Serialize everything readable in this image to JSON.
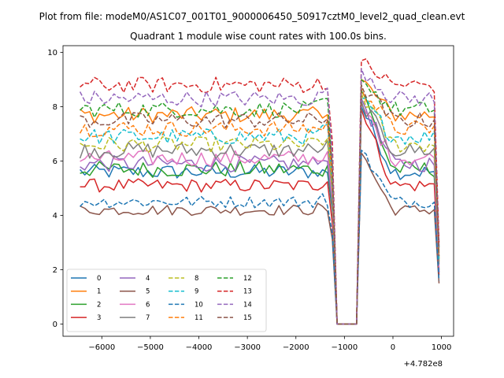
{
  "figure": {
    "suptitle": "Plot from file: modeM0/AS1C07_001T01_9000006450_50917cztM0_level2_quad_clean.evt"
  },
  "chart_data": {
    "type": "line",
    "title": "Quadrant 1 module wise count rates with 100.0s bins.",
    "xlabel": "",
    "ylabel": "",
    "x_offset_label": "+4.782e8",
    "xlim": [
      -6800,
      1250
    ],
    "ylim": [
      -0.45,
      10.25
    ],
    "x_ticks": [
      -6000,
      -5000,
      -4000,
      -3000,
      -2000,
      -1000,
      0,
      1000
    ],
    "x_tick_labels": [
      "−6000",
      "−5000",
      "−4000",
      "−3000",
      "−2000",
      "−1000",
      "0",
      "1000"
    ],
    "y_ticks": [
      0,
      2,
      4,
      6,
      8,
      10
    ],
    "y_tick_labels": [
      "0",
      "2",
      "4",
      "6",
      "8",
      "10"
    ],
    "grid": false,
    "legend_location": "lower-left",
    "legend_columns": 4,
    "x_start": -6450,
    "x_step": 100,
    "active_segment_1_end": -1250,
    "gap_start": -1150,
    "gap_end": -750,
    "active_segment_2_start": -650,
    "x_end": 950,
    "series": [
      {
        "name": "0",
        "color": "#1f77b4",
        "dash": "solid",
        "level": 5.6,
        "noise": 0.28,
        "peak": 8.0,
        "end": 1.9
      },
      {
        "name": "1",
        "color": "#ff7f0e",
        "dash": "solid",
        "level": 7.7,
        "noise": 0.3,
        "peak": 9.0,
        "end": 2.3
      },
      {
        "name": "2",
        "color": "#2ca02c",
        "dash": "solid",
        "level": 5.7,
        "noise": 0.3,
        "peak": 8.6,
        "end": 2.0
      },
      {
        "name": "3",
        "color": "#d62728",
        "dash": "solid",
        "level": 5.1,
        "noise": 0.25,
        "peak": 7.9,
        "end": 1.8
      },
      {
        "name": "4",
        "color": "#9467bd",
        "dash": "solid",
        "level": 5.9,
        "noise": 0.3,
        "peak": 8.3,
        "end": 1.9
      },
      {
        "name": "5",
        "color": "#8c564b",
        "dash": "solid",
        "level": 4.2,
        "noise": 0.2,
        "peak": 6.3,
        "end": 1.5
      },
      {
        "name": "6",
        "color": "#e377c2",
        "dash": "solid",
        "level": 6.1,
        "noise": 0.3,
        "peak": 8.1,
        "end": 2.1
      },
      {
        "name": "7",
        "color": "#7f7f7f",
        "dash": "solid",
        "level": 6.4,
        "noise": 0.3,
        "peak": 8.2,
        "end": 2.2
      },
      {
        "name": "8",
        "color": "#bcbd22",
        "dash": "dashed",
        "level": 6.6,
        "noise": 0.3,
        "peak": 8.5,
        "end": 2.4
      },
      {
        "name": "9",
        "color": "#17becf",
        "dash": "dashed",
        "level": 6.9,
        "noise": 0.3,
        "peak": 8.3,
        "end": 2.4
      },
      {
        "name": "10",
        "color": "#1f77b4",
        "dash": "dashed",
        "level": 4.5,
        "noise": 0.22,
        "peak": 6.4,
        "end": 1.6
      },
      {
        "name": "11",
        "color": "#ff7f0e",
        "dash": "dashed",
        "level": 7.2,
        "noise": 0.3,
        "peak": 8.7,
        "end": 2.6
      },
      {
        "name": "12",
        "color": "#2ca02c",
        "dash": "dashed",
        "level": 7.9,
        "noise": 0.3,
        "peak": 9.0,
        "end": 2.8
      },
      {
        "name": "13",
        "color": "#d62728",
        "dash": "dashed",
        "level": 8.8,
        "noise": 0.3,
        "peak": 9.7,
        "end": 3.0
      },
      {
        "name": "14",
        "color": "#9467bd",
        "dash": "dashed",
        "level": 8.3,
        "noise": 0.3,
        "peak": 9.4,
        "end": 2.8
      },
      {
        "name": "15",
        "color": "#8c564b",
        "dash": "dashed",
        "level": 7.5,
        "noise": 0.3,
        "peak": 8.8,
        "end": 2.5
      }
    ]
  }
}
